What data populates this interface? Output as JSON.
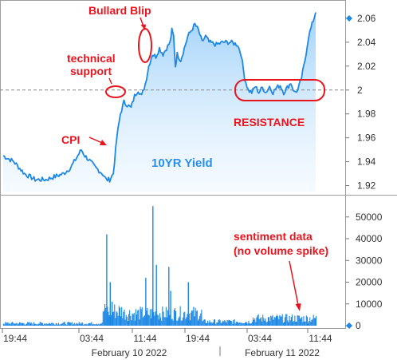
{
  "chart_data": [
    {
      "type": "area",
      "series": [
        {
          "name": "10YR Yield",
          "color": "#1e88e5",
          "x": [
            "2022-02-10 19:44",
            "2022-02-10 23:44",
            "2022-02-11 03:44",
            "2022-02-11 07:44",
            "2022-02-11 11:44"
          ],
          "y_points": [
            [
              0,
              1.945
            ],
            [
              3,
              1.94
            ],
            [
              6,
              1.93
            ],
            [
              9,
              1.925
            ],
            [
              12,
              1.925
            ],
            [
              15,
              1.928
            ],
            [
              17,
              1.93
            ],
            [
              19,
              1.935
            ],
            [
              21,
              1.945
            ],
            [
              22,
              1.95
            ],
            [
              23,
              1.945
            ],
            [
              24,
              1.942
            ],
            [
              26,
              1.935
            ],
            [
              28,
              1.93
            ],
            [
              29,
              1.925
            ],
            [
              30,
              1.925
            ],
            [
              31,
              1.93
            ],
            [
              32,
              1.96
            ],
            [
              33,
              1.98
            ],
            [
              34,
              1.99
            ],
            [
              36,
              1.985
            ],
            [
              37,
              1.995
            ],
            [
              38,
              2.0
            ],
            [
              39,
              1.995
            ],
            [
              40,
              2.005
            ],
            [
              41,
              2.02
            ],
            [
              42,
              2.03
            ],
            [
              43,
              2.028
            ],
            [
              44,
              2.035
            ],
            [
              45,
              2.03
            ],
            [
              46,
              2.035
            ],
            [
              47,
              2.04
            ],
            [
              47.5,
              2.05
            ],
            [
              48,
              2.045
            ],
            [
              48.5,
              2.02
            ],
            [
              49,
              2.03
            ],
            [
              50,
              2.025
            ],
            [
              51,
              2.035
            ],
            [
              52,
              2.045
            ],
            [
              53,
              2.05
            ],
            [
              54,
              2.055
            ],
            [
              55,
              2.05
            ],
            [
              56,
              2.04
            ],
            [
              57,
              2.045
            ],
            [
              58,
              2.04
            ],
            [
              60,
              2.038
            ],
            [
              62,
              2.04
            ],
            [
              64,
              2.04
            ],
            [
              66,
              2.038
            ],
            [
              67,
              2.03
            ],
            [
              68,
              2.01
            ],
            [
              69,
              2.0
            ],
            [
              70,
              1.998
            ],
            [
              71,
              2.003
            ],
            [
              72,
              1.998
            ],
            [
              73,
              2.002
            ],
            [
              74,
              1.998
            ],
            [
              75,
              2.003
            ],
            [
              76,
              1.998
            ],
            [
              77,
              2.002
            ],
            [
              78,
              2.004
            ],
            [
              79,
              1.998
            ],
            [
              80,
              2.002
            ],
            [
              81,
              2.006
            ],
            [
              82,
              1.998
            ],
            [
              83,
              2.0
            ],
            [
              84,
              2.01
            ],
            [
              85,
              2.025
            ],
            [
              86,
              2.045
            ],
            [
              87,
              2.055
            ],
            [
              88,
              2.065
            ]
          ],
          "last_value": 2.06
        }
      ],
      "x_ticks": [
        "19:44",
        "03:44",
        "11:44",
        "19:44",
        "03:44",
        "11:44"
      ],
      "dates": [
        "February 10 2022",
        "February 11 2022"
      ],
      "y_ticks": [
        1.92,
        1.94,
        1.96,
        1.98,
        2,
        2.02,
        2.04,
        2.06
      ],
      "ylim": [
        1.915,
        2.07
      ],
      "reference_line": 2,
      "annotations": {
        "bullard": "Bullard Blip",
        "support_1": "technical",
        "support_2": "support",
        "cpi": "CPI",
        "resistance": "RESISTANCE"
      }
    },
    {
      "type": "bar",
      "series": [
        {
          "color": "#1e88e5"
        }
      ],
      "y_ticks": [
        0,
        10000,
        20000,
        30000,
        40000,
        50000
      ],
      "ylim": [
        0,
        58000
      ],
      "last_value": 0,
      "notable_spikes": [
        [
          29,
          42000
        ],
        [
          30,
          20000
        ],
        [
          30.5,
          11000
        ],
        [
          40,
          22000
        ],
        [
          42,
          55000
        ],
        [
          43,
          28000
        ],
        [
          46.5,
          27000
        ],
        [
          47,
          16000
        ],
        [
          52,
          20000
        ]
      ],
      "annotations": {
        "sentiment_1": "sentiment data",
        "sentiment_2": "(no volume spike)"
      }
    }
  ]
}
